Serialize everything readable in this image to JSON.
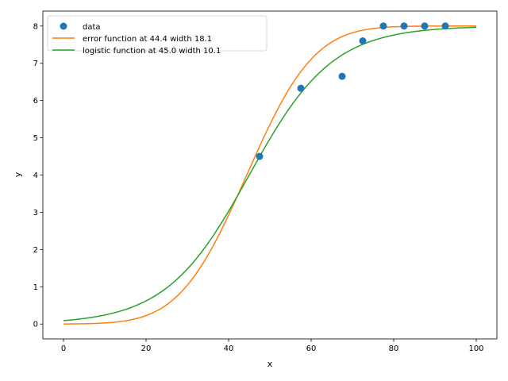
{
  "chart_data": {
    "type": "line",
    "title": "",
    "xlabel": "x",
    "ylabel": "y",
    "xlim": [
      -5,
      105
    ],
    "ylim": [
      -0.4,
      8.4
    ],
    "xticks": [
      0,
      20,
      40,
      60,
      80,
      100
    ],
    "yticks": [
      0,
      1,
      2,
      3,
      4,
      5,
      6,
      7,
      8
    ],
    "grid": false,
    "legend_position": "top-left",
    "scatter": {
      "name": "data",
      "color": "#1f77b4",
      "x": [
        47.5,
        57.5,
        67.5,
        72.5,
        77.5,
        82.5,
        87.5,
        92.5
      ],
      "y": [
        4.5,
        6.33,
        6.65,
        7.6,
        8.0,
        8.0,
        8.0,
        8.0
      ]
    },
    "series": [
      {
        "name": "error function at 44.4 width 18.1",
        "color": "#ff7f0e",
        "kind": "erf",
        "center": 44.4,
        "width": 18.1,
        "amplitude": 8.0,
        "x_range": [
          0,
          100
        ]
      },
      {
        "name": "logistic function at 45.0 width 10.1",
        "color": "#2ca02c",
        "kind": "logistic",
        "center": 45.0,
        "width": 10.1,
        "amplitude": 8.0,
        "x_range": [
          0,
          100
        ]
      }
    ]
  }
}
